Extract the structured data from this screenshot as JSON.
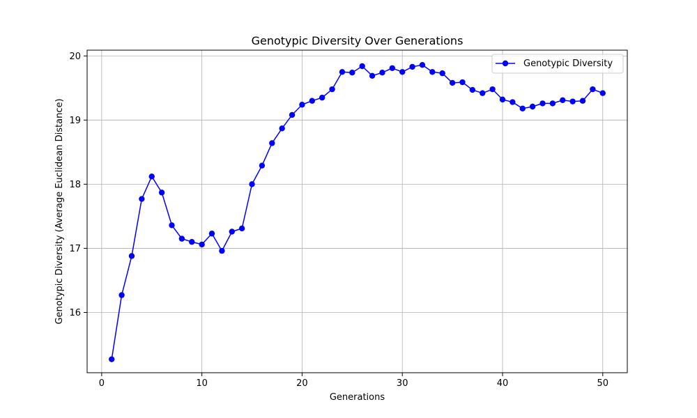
{
  "chart_data": {
    "type": "line",
    "title": "Genotypic Diversity Over Generations",
    "xlabel": "Generations",
    "ylabel": "Genotypic Diversity (Average Euclidean Distance)",
    "xlim": [
      -1.45,
      52.45
    ],
    "ylim": [
      15.06,
      20.09
    ],
    "xticks": [
      0,
      10,
      20,
      30,
      40,
      50
    ],
    "yticks": [
      16,
      17,
      18,
      19,
      20
    ],
    "grid": true,
    "legend_position": "top-right",
    "series": [
      {
        "name": "Genotypic Diversity",
        "color": "#0000ff",
        "marker": "circle",
        "x": [
          1,
          2,
          3,
          4,
          5,
          6,
          7,
          8,
          9,
          10,
          11,
          12,
          13,
          14,
          15,
          16,
          17,
          18,
          19,
          20,
          21,
          22,
          23,
          24,
          25,
          26,
          27,
          28,
          29,
          30,
          31,
          32,
          33,
          34,
          35,
          36,
          37,
          38,
          39,
          40,
          41,
          42,
          43,
          44,
          45,
          46,
          47,
          48,
          49,
          50
        ],
        "y": [
          15.27,
          16.27,
          16.88,
          17.77,
          18.12,
          17.87,
          17.36,
          17.15,
          17.1,
          17.06,
          17.23,
          16.96,
          17.26,
          17.31,
          18.0,
          18.29,
          18.64,
          18.87,
          19.08,
          19.24,
          19.3,
          19.35,
          19.48,
          19.75,
          19.74,
          19.84,
          19.69,
          19.74,
          19.81,
          19.75,
          19.83,
          19.86,
          19.75,
          19.73,
          19.58,
          19.59,
          19.47,
          19.42,
          19.48,
          19.32,
          19.28,
          19.18,
          19.21,
          19.26,
          19.26,
          19.31,
          19.29,
          19.3,
          19.48,
          19.42
        ]
      }
    ]
  }
}
